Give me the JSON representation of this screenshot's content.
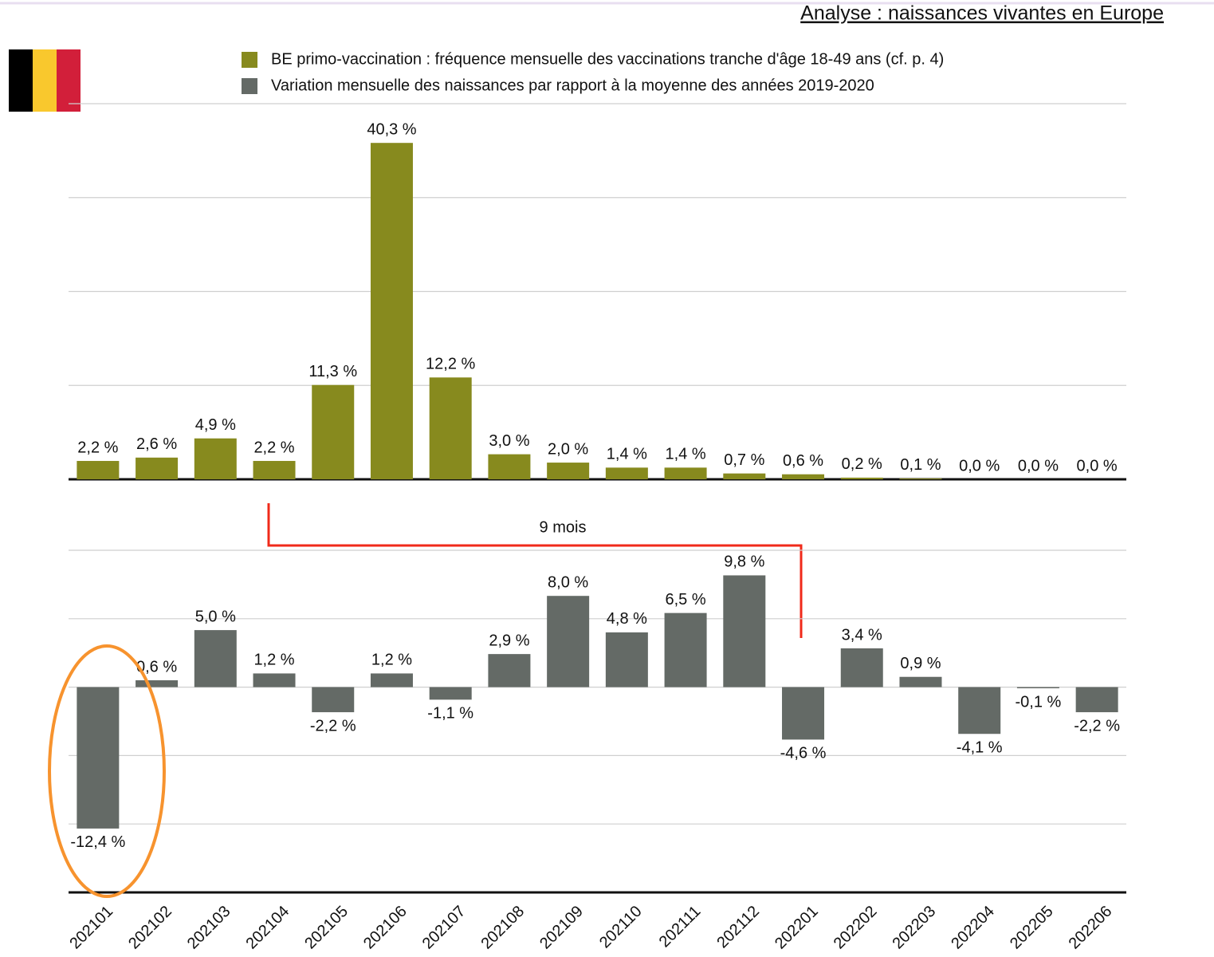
{
  "title": "Analyse : naissances vivantes en Europe",
  "chart_data": [
    {
      "type": "bar",
      "series": [
        {
          "name": "BE primo-vaccination : fréquence mensuelle des vaccinations tranche d'âge 18-49 ans (cf. p. 4)",
          "color": "#878a1e",
          "values": [
            2.2,
            2.6,
            4.9,
            2.2,
            11.3,
            40.3,
            12.2,
            3.0,
            2.0,
            1.4,
            1.4,
            0.7,
            0.6,
            0.2,
            0.1,
            0.0,
            0.0,
            0.0
          ],
          "value_labels": [
            "2,2 %",
            "2,6 %",
            "4,9 %",
            "2,2 %",
            "11,3 %",
            "40,3 %",
            "12,2 %",
            "3,0 %",
            "2,0 %",
            "1,4 %",
            "1,4 %",
            "0,7 %",
            "0,6 %",
            "0,2 %",
            "0,1 %",
            "0,0 %",
            "0,0 %",
            "0,0 %"
          ]
        }
      ],
      "ylim": [
        0,
        45
      ],
      "yticks": [
        0,
        11.25,
        22.5,
        33.75,
        45
      ],
      "grid": true,
      "tick_labels": false
    },
    {
      "type": "bar",
      "categories": [
        "202101",
        "202102",
        "202103",
        "202104",
        "202105",
        "202106",
        "202107",
        "202108",
        "202109",
        "202110",
        "202111",
        "202112",
        "202201",
        "202202",
        "202203",
        "202204",
        "202205",
        "202206"
      ],
      "series": [
        {
          "name": "Variation mensuelle des naissances par rapport à la moyenne des années 2019-2020",
          "color": "#646a66",
          "values": [
            -12.4,
            0.6,
            5.0,
            1.2,
            -2.2,
            1.2,
            -1.1,
            2.9,
            8.0,
            4.8,
            6.5,
            9.8,
            -4.6,
            3.4,
            0.9,
            -4.1,
            -0.1,
            -2.2
          ],
          "value_labels": [
            "-12,4 %",
            "0,6 %",
            "5,0 %",
            "1,2 %",
            "-2,2 %",
            "1,2 %",
            "-1,1 %",
            "2,9 %",
            "8,0 %",
            "4,8 %",
            "6,5 %",
            "9,8 %",
            "-4,6 %",
            "3,4 %",
            "0,9 %",
            "-4,1 %",
            "-0,1 %",
            "-2,2 %"
          ]
        }
      ],
      "ylim": [
        -18,
        12
      ],
      "yticks": [
        -18,
        -12,
        -6,
        0,
        6,
        12
      ],
      "grid": true,
      "tick_labels": false,
      "annotations": [
        "9 mois"
      ]
    }
  ]
}
